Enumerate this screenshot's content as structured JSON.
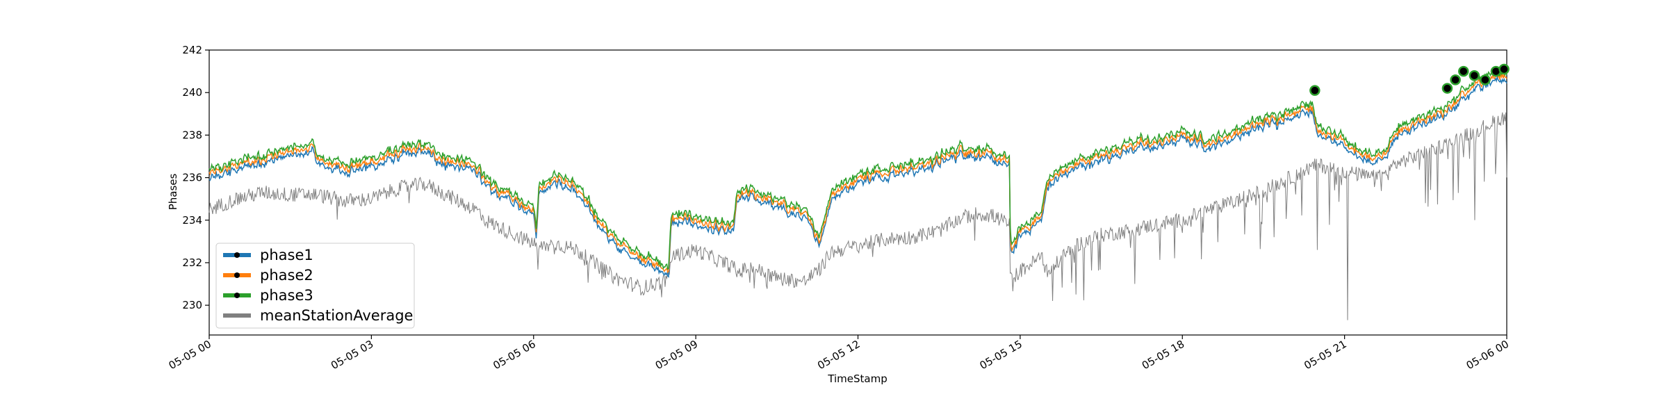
{
  "chart_data": {
    "type": "line",
    "title": "",
    "xlabel": "TimeStamp",
    "ylabel": "Phases",
    "xlim_hours": [
      0,
      24
    ],
    "ylim": [
      228.6,
      242
    ],
    "grid": false,
    "legend_placement": "lower-left",
    "x_ticks": [
      {
        "hour": 0,
        "label": "05-05 00"
      },
      {
        "hour": 3,
        "label": "05-05 03"
      },
      {
        "hour": 6,
        "label": "05-05 06"
      },
      {
        "hour": 9,
        "label": "05-05 09"
      },
      {
        "hour": 12,
        "label": "05-05 12"
      },
      {
        "hour": 15,
        "label": "05-05 15"
      },
      {
        "hour": 18,
        "label": "05-05 18"
      },
      {
        "hour": 21,
        "label": "05-05 21"
      },
      {
        "hour": 24,
        "label": "05-06 00"
      }
    ],
    "y_ticks": [
      230,
      232,
      234,
      236,
      238,
      240,
      242
    ],
    "series": [
      {
        "name": "phase1",
        "color": "#1f77b4",
        "offset": -0.2
      },
      {
        "name": "phase2",
        "color": "#ff7f0e",
        "offset": 0.0
      },
      {
        "name": "phase3",
        "color": "#2ca02c",
        "offset": 0.2
      },
      {
        "name": "meanStationAverage",
        "color": "#808080"
      }
    ],
    "phase_profile": [
      [
        0,
        236.1
      ],
      [
        0.5,
        236.6
      ],
      [
        1,
        236.9
      ],
      [
        1.5,
        237.2
      ],
      [
        1.95,
        237.4
      ],
      [
        2.0,
        236.8
      ],
      [
        2.5,
        236.5
      ],
      [
        3,
        236.7
      ],
      [
        3.5,
        237.2
      ],
      [
        4,
        237.4
      ],
      [
        4.3,
        236.9
      ],
      [
        5,
        236.4
      ],
      [
        5.1,
        235.7
      ],
      [
        5.5,
        235.2
      ],
      [
        6,
        234.5
      ],
      [
        6.05,
        233.6
      ],
      [
        6.1,
        235.5
      ],
      [
        6.4,
        236.0
      ],
      [
        6.8,
        235.5
      ],
      [
        7,
        234.7
      ],
      [
        7.5,
        233.0
      ],
      [
        8,
        232.3
      ],
      [
        8.5,
        231.6
      ],
      [
        8.55,
        234.1
      ],
      [
        9,
        234.0
      ],
      [
        9.5,
        233.6
      ],
      [
        9.7,
        233.6
      ],
      [
        9.75,
        235.0
      ],
      [
        10,
        235.3
      ],
      [
        10.5,
        234.8
      ],
      [
        11,
        234.3
      ],
      [
        11.3,
        233.1
      ],
      [
        11.5,
        235.2
      ],
      [
        12,
        236.0
      ],
      [
        12.5,
        236.3
      ],
      [
        13,
        236.5
      ],
      [
        13.5,
        236.8
      ],
      [
        13.9,
        237.3
      ],
      [
        14.2,
        237.2
      ],
      [
        14.5,
        237.0
      ],
      [
        14.8,
        236.7
      ],
      [
        14.82,
        232.6
      ],
      [
        15,
        233.4
      ],
      [
        15.4,
        234.2
      ],
      [
        15.5,
        235.8
      ],
      [
        16,
        236.6
      ],
      [
        16.5,
        237.0
      ],
      [
        17,
        237.5
      ],
      [
        17.5,
        237.6
      ],
      [
        18,
        238.0
      ],
      [
        18.5,
        237.6
      ],
      [
        19,
        238.1
      ],
      [
        19.5,
        238.6
      ],
      [
        20,
        239.0
      ],
      [
        20.4,
        239.4
      ],
      [
        20.5,
        238.2
      ],
      [
        21,
        237.6
      ],
      [
        21.5,
        236.9
      ],
      [
        21.8,
        237.2
      ],
      [
        21.9,
        238.0
      ],
      [
        22.5,
        238.7
      ],
      [
        23,
        239.4
      ],
      [
        23.5,
        240.5
      ],
      [
        24,
        240.9
      ]
    ],
    "mean_profile": [
      [
        0,
        234.5
      ],
      [
        0.5,
        235.0
      ],
      [
        1,
        235.3
      ],
      [
        1.5,
        235.2
      ],
      [
        2,
        235.2
      ],
      [
        2.5,
        234.9
      ],
      [
        3,
        235.0
      ],
      [
        3.5,
        235.5
      ],
      [
        4,
        235.7
      ],
      [
        4.3,
        235.3
      ],
      [
        5,
        234.4
      ],
      [
        5.1,
        234.0
      ],
      [
        5.5,
        233.5
      ],
      [
        6,
        232.9
      ],
      [
        6.1,
        232.7
      ],
      [
        6.4,
        232.9
      ],
      [
        6.8,
        232.6
      ],
      [
        7,
        232.2
      ],
      [
        7.5,
        231.3
      ],
      [
        8,
        230.8
      ],
      [
        8.5,
        231.2
      ],
      [
        8.55,
        232.3
      ],
      [
        9,
        232.6
      ],
      [
        9.5,
        232.0
      ],
      [
        9.7,
        231.8
      ],
      [
        9.75,
        231.5
      ],
      [
        10,
        231.8
      ],
      [
        10.5,
        231.3
      ],
      [
        11,
        231.1
      ],
      [
        11.3,
        231.7
      ],
      [
        11.5,
        232.5
      ],
      [
        12,
        232.8
      ],
      [
        12.5,
        233.1
      ],
      [
        13,
        233.2
      ],
      [
        13.5,
        233.5
      ],
      [
        13.9,
        234.1
      ],
      [
        14.2,
        234.3
      ],
      [
        14.5,
        234.2
      ],
      [
        14.8,
        233.8
      ],
      [
        14.82,
        231.2
      ],
      [
        15,
        231.6
      ],
      [
        15.4,
        232.3
      ],
      [
        15.5,
        231.5
      ],
      [
        16,
        232.8
      ],
      [
        16.5,
        233.3
      ],
      [
        17,
        233.5
      ],
      [
        17.5,
        233.8
      ],
      [
        18,
        234.0
      ],
      [
        18.5,
        234.5
      ],
      [
        19,
        234.9
      ],
      [
        19.5,
        235.4
      ],
      [
        20,
        236.0
      ],
      [
        20.4,
        236.5
      ],
      [
        20.5,
        236.6
      ],
      [
        21,
        236.3
      ],
      [
        21.5,
        236.0
      ],
      [
        21.8,
        236.2
      ],
      [
        21.9,
        236.6
      ],
      [
        22.5,
        237.2
      ],
      [
        23,
        237.7
      ],
      [
        23.5,
        238.3
      ],
      [
        24,
        238.9
      ]
    ],
    "marker_points": [
      {
        "hour": 20.45,
        "value": 240.1
      },
      {
        "hour": 22.9,
        "value": 240.2
      },
      {
        "hour": 23.05,
        "value": 240.6
      },
      {
        "hour": 23.2,
        "value": 241.0
      },
      {
        "hour": 23.4,
        "value": 240.8
      },
      {
        "hour": 23.6,
        "value": 240.6
      },
      {
        "hour": 23.8,
        "value": 241.0
      },
      {
        "hour": 23.95,
        "value": 241.1
      }
    ]
  }
}
